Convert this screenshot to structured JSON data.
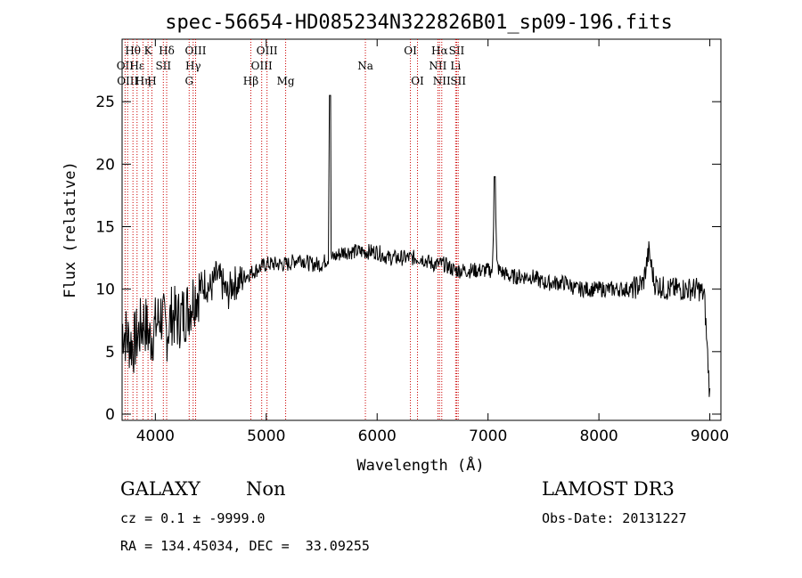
{
  "chart_data": {
    "type": "line",
    "title": "spec-56654-HD085234N322826B01_sp09-196.fits",
    "xlabel": "Wavelength (Å)",
    "ylabel": "Flux (relative)",
    "xlim": [
      3700,
      9100
    ],
    "ylim": [
      -0.5,
      30
    ],
    "xticks": [
      4000,
      5000,
      6000,
      7000,
      8000,
      9000
    ],
    "yticks": [
      0,
      5,
      10,
      15,
      20,
      25
    ],
    "line_color": "#000000",
    "marker_color": "#cc0000",
    "series": [
      {
        "x": [
          3700,
          3750,
          3800,
          3850,
          3900,
          3950,
          4000,
          4050,
          4100,
          4150,
          4200,
          4250,
          4300,
          4350,
          4400,
          4450,
          4500,
          4550,
          4600,
          4650,
          4700,
          4750,
          4800,
          4900,
          5000,
          5100,
          5200,
          5300,
          5400,
          5500,
          5560,
          5570,
          5580,
          5600,
          5700,
          5800,
          5900,
          6000,
          6100,
          6200,
          6300,
          6400,
          6500,
          6600,
          6700,
          6800,
          6900,
          7000,
          7040,
          7060,
          7080,
          7100,
          7200,
          7300,
          7400,
          7500,
          7600,
          7700,
          7800,
          7900,
          8000,
          8100,
          8200,
          8300,
          8400,
          8450,
          8500,
          8600,
          8700,
          8800,
          8900,
          8950,
          9000
        ],
        "y": [
          7,
          6,
          5.5,
          6.5,
          7.5,
          6,
          7,
          8,
          6.5,
          8,
          7.5,
          8,
          8.5,
          9.5,
          10,
          10.5,
          10,
          11,
          10.5,
          9.5,
          10.5,
          10.5,
          11,
          11.5,
          12,
          12,
          12,
          12.5,
          12,
          12,
          12.5,
          25.5,
          12.5,
          12.5,
          13,
          13,
          13,
          13,
          12.5,
          12.5,
          12.5,
          12.5,
          12,
          12,
          11.5,
          11.5,
          11.5,
          11.5,
          11.5,
          19,
          12,
          11.5,
          11,
          11,
          11,
          10.5,
          10.5,
          10.5,
          10,
          10,
          10,
          10,
          10,
          10,
          10.5,
          13,
          10.5,
          10,
          10,
          10,
          10,
          9.5,
          1.5
        ]
      }
    ],
    "lines": [
      {
        "x": 3727,
        "label": "OII",
        "row": 1
      },
      {
        "x": 3750,
        "label": "OIII",
        "row": 2
      },
      {
        "x": 3798,
        "label": "Hθ",
        "row": 0
      },
      {
        "x": 3835,
        "label": "Hε",
        "row": 1
      },
      {
        "x": 3889,
        "label": "Hη",
        "row": 2
      },
      {
        "x": 3934,
        "label": "K",
        "row": 0
      },
      {
        "x": 3969,
        "label": "H",
        "row": 2
      },
      {
        "x": 4102,
        "label": "Hδ",
        "row": 0
      },
      {
        "x": 4072,
        "label": "SII",
        "row": 1
      },
      {
        "x": 4305,
        "label": "G",
        "row": 2
      },
      {
        "x": 4341,
        "label": "Hγ",
        "row": 1
      },
      {
        "x": 4363,
        "label": "OIII",
        "row": 0
      },
      {
        "x": 4861,
        "label": "Hβ",
        "row": 2
      },
      {
        "x": 4959,
        "label": "OIII",
        "row": 1
      },
      {
        "x": 5007,
        "label": "OIII",
        "row": 0
      },
      {
        "x": 5175,
        "label": "Mg",
        "row": 2
      },
      {
        "x": 5894,
        "label": "Na",
        "row": 1
      },
      {
        "x": 6300,
        "label": "OI",
        "row": 0
      },
      {
        "x": 6364,
        "label": "OI",
        "row": 2
      },
      {
        "x": 6548,
        "label": "NII",
        "row": 1
      },
      {
        "x": 6563,
        "label": "Hα",
        "row": 0
      },
      {
        "x": 6583,
        "label": "NII",
        "row": 2
      },
      {
        "x": 6708,
        "label": "Li",
        "row": 1
      },
      {
        "x": 6717,
        "label": "SII",
        "row": 0
      },
      {
        "x": 6731,
        "label": "SII",
        "row": 2
      }
    ]
  },
  "info": {
    "object_type": "GALAXY",
    "subclass": "Non",
    "survey": "LAMOST DR3",
    "cz": "cz = 0.1 ± -9999.0",
    "obs_date": "Obs-Date: 20131227",
    "coords": "RA = 134.45034, DEC =  33.09255"
  }
}
